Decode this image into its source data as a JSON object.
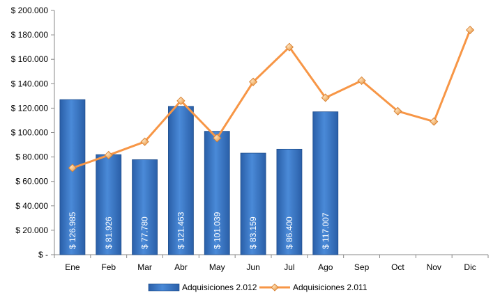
{
  "chart_data": {
    "type": "bar",
    "title": "",
    "xlabel": "",
    "ylabel": "",
    "ylim": [
      0,
      200000
    ],
    "y_ticks": [
      0,
      20000,
      40000,
      60000,
      80000,
      100000,
      120000,
      140000,
      160000,
      180000,
      200000
    ],
    "y_tick_labels": [
      "$ -",
      "$ 20.000",
      "$ 40.000",
      "$ 60.000",
      "$ 80.000",
      "$ 100.000",
      "$ 120.000",
      "$ 140.000",
      "$ 160.000",
      "$ 180.000",
      "$ 200.000"
    ],
    "categories": [
      "Ene",
      "Feb",
      "Mar",
      "Abr",
      "May",
      "Jun",
      "Jul",
      "Ago",
      "Sep",
      "Oct",
      "Nov",
      "Dic"
    ],
    "grid": false,
    "legend_position": "bottom",
    "series": [
      {
        "name": "Adquisiciones 2.012",
        "type": "bar",
        "color": "#3a78c4",
        "values": [
          126985,
          81926,
          77780,
          121463,
          101039,
          83159,
          86400,
          117007,
          null,
          null,
          null,
          null
        ],
        "data_labels": [
          "$ 126.985",
          "$ 81.926",
          "$ 77.780",
          "$ 121.463",
          "$ 101.039",
          "$ 83.159",
          "$ 86.400",
          "$ 117.007",
          "",
          "",
          "",
          ""
        ]
      },
      {
        "name": "Adquisiciones 2.011",
        "type": "line",
        "color": "#f79646",
        "marker_color": "#f2a65a",
        "values": [
          71000,
          81500,
          92500,
          126000,
          95500,
          141500,
          170000,
          128500,
          142500,
          117500,
          109000,
          184000
        ]
      }
    ]
  }
}
